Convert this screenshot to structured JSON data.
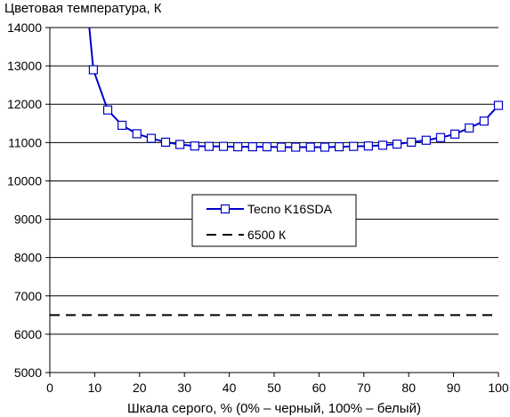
{
  "chart_data": {
    "type": "line",
    "ylabel": "Цветовая температура, К",
    "xlabel": "Шкала серого, % (0% – черный, 100% – белый)",
    "xlim": [
      0,
      100
    ],
    "ylim": [
      5000,
      14000
    ],
    "xticks": [
      0,
      10,
      20,
      30,
      40,
      50,
      60,
      70,
      80,
      90,
      100
    ],
    "yticks": [
      5000,
      6000,
      7000,
      8000,
      9000,
      10000,
      11000,
      12000,
      13000,
      14000
    ],
    "grid": "horizontal",
    "legend_position": "center",
    "series": [
      {
        "name": "Tecno K16SDA",
        "color": "#0000cc",
        "marker": "square",
        "line_start": {
          "x": 8.8,
          "y": 14000
        },
        "x": [
          9.7,
          12.9,
          16.1,
          19.4,
          22.6,
          25.8,
          29.0,
          32.3,
          35.5,
          38.7,
          41.9,
          45.2,
          48.4,
          51.6,
          54.8,
          58.1,
          61.3,
          64.5,
          67.7,
          71.0,
          74.2,
          77.4,
          80.6,
          83.9,
          87.1,
          90.3,
          93.5,
          96.8,
          100
        ],
        "y": [
          12900,
          11850,
          11450,
          11230,
          11110,
          11010,
          10950,
          10910,
          10900,
          10900,
          10890,
          10890,
          10890,
          10880,
          10880,
          10880,
          10880,
          10890,
          10900,
          10910,
          10930,
          10960,
          11010,
          11060,
          11130,
          11220,
          11380,
          11560,
          11970
        ]
      },
      {
        "name": "6500 К",
        "color": "#000000",
        "style": "dashed",
        "x": [
          0,
          100
        ],
        "y": [
          6500,
          6500
        ]
      }
    ]
  }
}
